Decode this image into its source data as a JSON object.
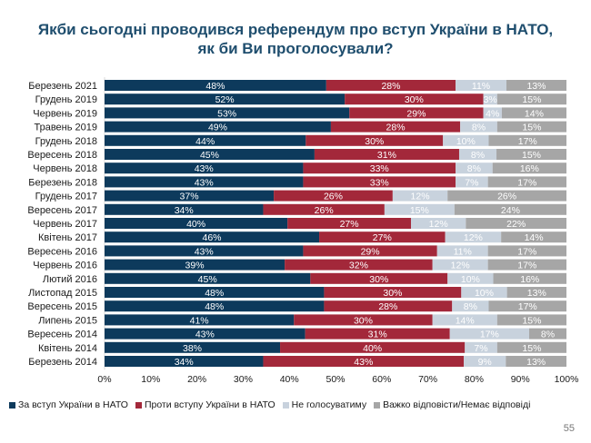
{
  "chart_data": {
    "type": "bar",
    "orientation": "horizontal",
    "stacked": true,
    "title_lines": [
      "Якби сьогодні проводився референдум про вступ України в НАТО,",
      "як би Ви проголосували?"
    ],
    "categories": [
      "Березень 2021",
      "Грудень 2019",
      "Червень 2019",
      "Травень 2019",
      "Грудень 2018",
      "Вересень 2018",
      "Червень 2018",
      "Березень 2018",
      "Грудень 2017",
      "Вересень 2017",
      "Червень 2017",
      "Квітень 2017",
      "Вересень 2016",
      "Червень 2016",
      "Лютий 2016",
      "Листопад 2015",
      "Вересень 2015",
      "Липень 2015",
      "Вересень 2014",
      "Квітень 2014",
      "Березень 2014"
    ],
    "series": [
      {
        "name": "За вступ України в НАТО",
        "color": "#0d3a5c",
        "values": [
          48,
          52,
          53,
          49,
          44,
          45,
          43,
          43,
          37,
          34,
          40,
          46,
          43,
          39,
          45,
          48,
          48,
          41,
          43,
          38,
          34
        ]
      },
      {
        "name": "Проти вступу України в НАТО",
        "color": "#a3283a",
        "values": [
          28,
          30,
          29,
          28,
          30,
          31,
          33,
          33,
          26,
          26,
          27,
          27,
          29,
          32,
          30,
          30,
          28,
          30,
          31,
          40,
          43
        ]
      },
      {
        "name": "Не голосуватиму",
        "color": "#c8d2dd",
        "values": [
          11,
          3,
          4,
          8,
          10,
          8,
          8,
          7,
          12,
          15,
          12,
          12,
          11,
          12,
          10,
          10,
          8,
          14,
          17,
          7,
          9
        ]
      },
      {
        "name": "Важко відповісти/Немає відповіді",
        "color": "#a6a6a6",
        "values": [
          13,
          15,
          14,
          15,
          17,
          15,
          16,
          17,
          26,
          24,
          22,
          14,
          17,
          17,
          16,
          13,
          17,
          15,
          8,
          15,
          13
        ]
      }
    ],
    "xticks": [
      "0%",
      "10%",
      "20%",
      "30%",
      "40%",
      "50%",
      "60%",
      "70%",
      "80%",
      "90%",
      "100%"
    ],
    "xlim": [
      0,
      100
    ],
    "legend_position": "bottom",
    "grid": false
  },
  "page_number": "55"
}
